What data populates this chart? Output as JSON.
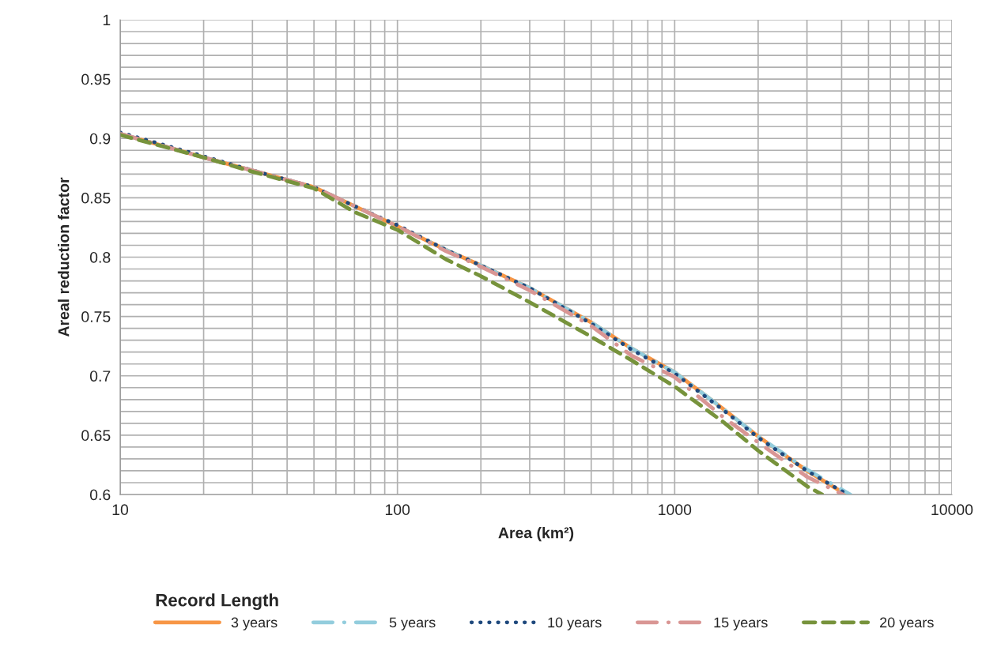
{
  "chart_data": {
    "type": "line",
    "xlabel": "Area (km²)",
    "ylabel": "Areal reduction factor",
    "legend_title": "Record Length",
    "log": "x",
    "xlim": [
      10,
      10000
    ],
    "xticks": [
      10,
      100,
      1000,
      10000
    ],
    "ylim": [
      0.6,
      1
    ],
    "yticks": [
      0.6,
      0.65,
      0.7,
      0.75,
      0.8,
      0.85,
      0.9,
      0.95,
      1
    ],
    "grid": true,
    "legend": "bottom",
    "marker": "none",
    "series": [
      {
        "name": "3 years",
        "color": "#f79646",
        "line_style": "solid",
        "x": [
          10,
          20,
          30,
          50,
          70,
          100,
          150,
          200,
          300,
          500,
          700,
          1000,
          1500,
          2000,
          3000,
          4150
        ],
        "values": [
          0.904,
          0.884,
          0.873,
          0.859,
          0.843,
          0.826,
          0.806,
          0.793,
          0.774,
          0.745,
          0.723,
          0.703,
          0.672,
          0.649,
          0.62,
          0.6
        ]
      },
      {
        "name": "5 years",
        "color": "#93cddd",
        "line_style": "dashdot",
        "x": [
          10,
          20,
          30,
          50,
          70,
          100,
          150,
          200,
          300,
          500,
          700,
          1000,
          1500,
          2000,
          3000,
          4300
        ],
        "values": [
          0.904,
          0.884,
          0.873,
          0.859,
          0.843,
          0.826,
          0.806,
          0.793,
          0.774,
          0.745,
          0.723,
          0.703,
          0.672,
          0.649,
          0.621,
          0.6
        ]
      },
      {
        "name": "10 years",
        "color": "#1f497d",
        "line_style": "dotted",
        "x": [
          10,
          20,
          30,
          50,
          70,
          100,
          150,
          200,
          300,
          500,
          700,
          1000,
          1500,
          2000,
          3000,
          4200
        ],
        "values": [
          0.905,
          0.885,
          0.873,
          0.859,
          0.843,
          0.827,
          0.806,
          0.793,
          0.774,
          0.744,
          0.722,
          0.702,
          0.671,
          0.648,
          0.62,
          0.6
        ]
      },
      {
        "name": "15 years",
        "color": "#d99694",
        "line_style": "dashdot",
        "x": [
          10,
          20,
          30,
          50,
          70,
          100,
          150,
          200,
          300,
          500,
          700,
          1000,
          1500,
          2000,
          3000,
          4040
        ],
        "values": [
          0.904,
          0.884,
          0.873,
          0.859,
          0.843,
          0.826,
          0.805,
          0.792,
          0.772,
          0.742,
          0.717,
          0.699,
          0.665,
          0.644,
          0.615,
          0.6
        ]
      },
      {
        "name": "20 years",
        "color": "#77933c",
        "line_style": "dashed",
        "x": [
          10,
          20,
          30,
          50,
          70,
          100,
          150,
          200,
          300,
          500,
          700,
          1000,
          1500,
          2000,
          3000,
          3400
        ],
        "values": [
          0.903,
          0.884,
          0.872,
          0.858,
          0.838,
          0.823,
          0.798,
          0.784,
          0.762,
          0.733,
          0.713,
          0.691,
          0.661,
          0.637,
          0.607,
          0.6
        ]
      }
    ]
  }
}
